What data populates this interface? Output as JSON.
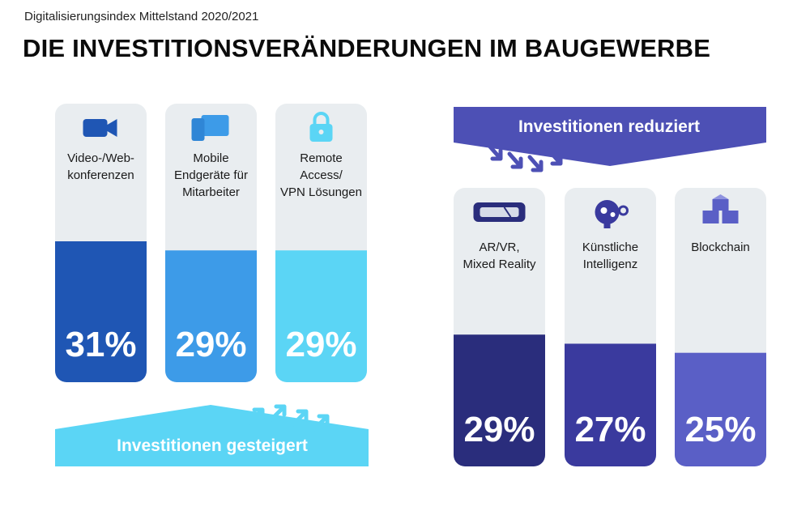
{
  "header": {
    "subtitle": "Digitalisierungsindex Mittelstand 2020/2021",
    "title": "DIE INVESTITIONSVERÄNDERUNGEN IM BAUGEWERBE"
  },
  "chart_data": [
    {
      "type": "bar",
      "group": "Investitionen gesteigert",
      "unit": "%",
      "categories": [
        "Video-/Web-konferenzen",
        "Mobile Endgeräte für Mitarbeiter",
        "Remote Access/ VPN Lösungen"
      ],
      "labels": [
        [
          "Video-/Web-",
          "konferenzen"
        ],
        [
          "Mobile",
          "Endgeräte für",
          "Mitarbeiter"
        ],
        [
          "Remote",
          "Access/",
          "VPN Lösungen"
        ]
      ],
      "values": [
        31,
        29,
        29
      ],
      "value_labels": [
        "31%",
        "29%",
        "29%"
      ],
      "icons": [
        "video-camera-icon",
        "mobile-devices-icon",
        "lock-icon"
      ],
      "colors": [
        "#1f56b4",
        "#3d9be8",
        "#5bd5f5"
      ],
      "banner": "Investitionen gesteigert",
      "banner_color": "#5bd5f5"
    },
    {
      "type": "bar",
      "group": "Investitionen reduziert",
      "unit": "%",
      "categories": [
        "AR/VR, Mixed Reality",
        "Künstliche Intelligenz",
        "Blockchain"
      ],
      "labels": [
        [
          "AR/VR,",
          "Mixed Reality"
        ],
        [
          "Künstliche",
          "Intelligenz"
        ],
        [
          "Blockchain"
        ]
      ],
      "values": [
        29,
        27,
        25
      ],
      "value_labels": [
        "29%",
        "27%",
        "25%"
      ],
      "icons": [
        "vr-headset-icon",
        "brain-gears-icon",
        "blockchain-cubes-icon"
      ],
      "colors": [
        "#2a2d7c",
        "#3a3a9e",
        "#5a5fc6"
      ],
      "banner": "Investitionen reduziert",
      "banner_color": "#4d50b5"
    }
  ]
}
